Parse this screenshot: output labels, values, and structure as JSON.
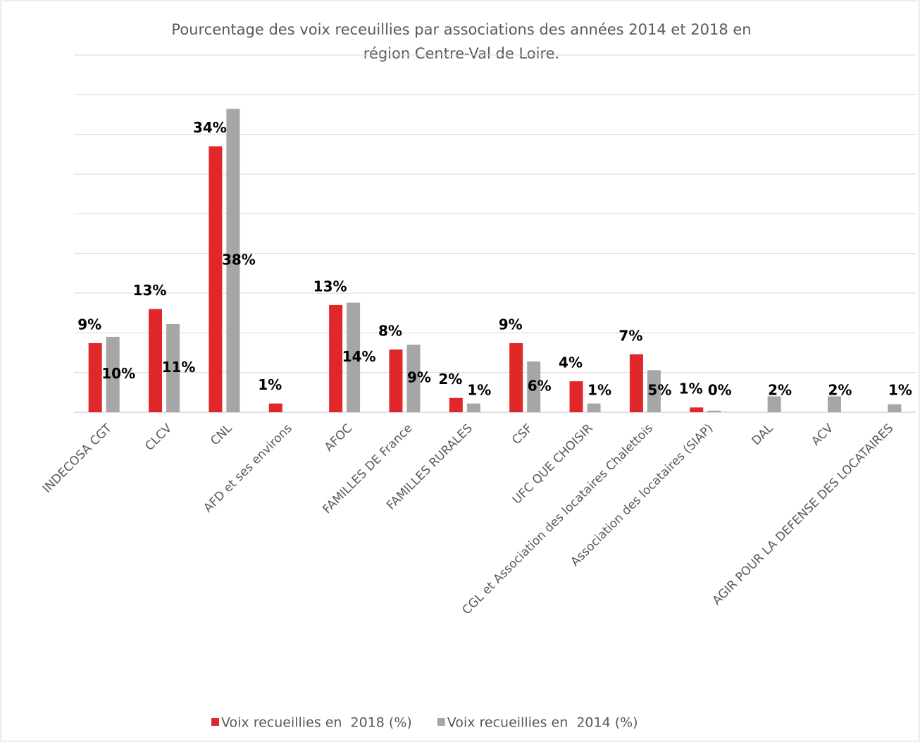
{
  "chart_data": {
    "type": "bar",
    "title": [
      "Pourcentage des voix receuillies par associations des années 2014 et 2018 en",
      "région Centre-Val de Loire."
    ],
    "categories": [
      "INDECOSA CGT",
      "CLCV",
      "CNL",
      "AFD et ses environs",
      "AFOC",
      "FAMILLES DE France",
      "FAMILLES RURALES",
      "CSF",
      "UFC QUE CHOISIR",
      "CGL et Association des locataires Chalettois",
      "Association des locataires (SIAP)",
      "DAL",
      "ACV",
      "AGIR POUR LA DEFENSE DES LOCATAIRES"
    ],
    "series": [
      {
        "name": "Voix recueillies en  2018 (%)",
        "color": "#e0282a",
        "values": [
          8.7,
          13.0,
          33.5,
          1.1,
          13.5,
          7.9,
          1.8,
          8.7,
          3.9,
          7.3,
          0.6,
          null,
          null,
          null
        ],
        "value_labels": [
          "9%",
          "13%",
          "34%",
          "1%",
          "13%",
          "8%",
          "2%",
          "9%",
          "4%",
          "7%",
          "1%",
          null,
          null,
          null
        ]
      },
      {
        "name": "Voix recueillies en  2014 (%)",
        "color": "#a6a6a6",
        "values": [
          9.5,
          11.1,
          38.2,
          null,
          13.8,
          8.5,
          1.1,
          6.4,
          1.1,
          5.3,
          0.2,
          2.0,
          2.0,
          1.0
        ],
        "value_labels": [
          "10%",
          "11%",
          "38%",
          null,
          "14%",
          "9%",
          "1%",
          "6%",
          "1%",
          "5%",
          "0%",
          "2%",
          "2%",
          "1%"
        ]
      }
    ],
    "ylim": [
      0,
      45
    ],
    "yticks": [
      0,
      5,
      10,
      15,
      20,
      25,
      30,
      35,
      40,
      45
    ],
    "grid": true
  }
}
